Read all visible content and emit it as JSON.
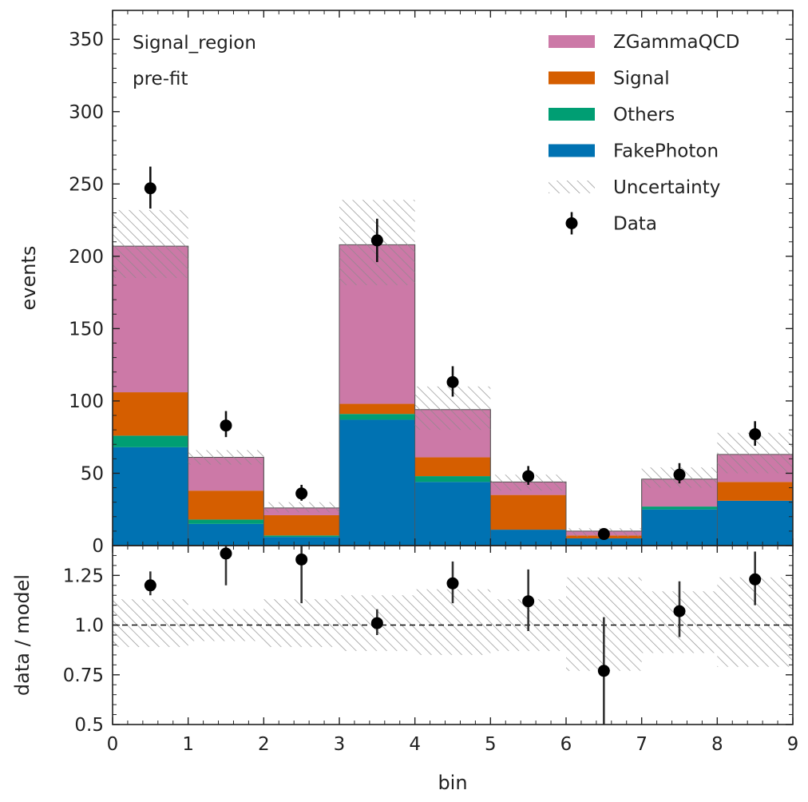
{
  "chart_data": [
    {
      "type": "bar",
      "stacked": true,
      "histogram": true,
      "annotations": [
        "Signal_region",
        "pre-fit"
      ],
      "xlabel": "bin",
      "ylabel": "events",
      "bin_edges": [
        0,
        1,
        2,
        3,
        4,
        5,
        6,
        7,
        8,
        9
      ],
      "xlim": [
        0,
        9
      ],
      "ylim": [
        0,
        370
      ],
      "xticks": [
        "0",
        "1",
        "2",
        "3",
        "4",
        "5",
        "6",
        "7",
        "8",
        "9"
      ],
      "yticks": [
        {
          "value": 0,
          "label": "0"
        },
        {
          "value": 50,
          "label": "50"
        },
        {
          "value": 100,
          "label": "100"
        },
        {
          "value": 150,
          "label": "150"
        },
        {
          "value": 200,
          "label": "200"
        },
        {
          "value": 250,
          "label": "250"
        },
        {
          "value": 300,
          "label": "300"
        },
        {
          "value": 350,
          "label": "350"
        }
      ],
      "legend_position": "top-right",
      "series": [
        {
          "name": "FakePhoton",
          "color": "#0072b2",
          "values": [
            68,
            15,
            6,
            87,
            44,
            11,
            5,
            25,
            31
          ]
        },
        {
          "name": "Others",
          "color": "#009e73",
          "values": [
            8,
            3,
            1,
            4,
            4,
            0,
            0,
            2,
            0
          ]
        },
        {
          "name": "Signal",
          "color": "#d55e00",
          "values": [
            30,
            20,
            14,
            7,
            13,
            24,
            2,
            0,
            13
          ]
        },
        {
          "name": "ZGammaQCD",
          "color": "#cc79a7",
          "values": [
            101,
            23,
            5,
            110,
            33,
            9,
            3,
            19,
            19
          ]
        }
      ],
      "uncertainty": {
        "name": "Uncertainty",
        "lower": [
          185,
          56,
          23,
          180,
          80,
          38,
          6,
          40,
          50
        ],
        "upper": [
          232,
          66,
          30,
          239,
          110,
          49,
          12,
          54,
          78
        ]
      },
      "data": {
        "name": "Data",
        "values": [
          247,
          83,
          36,
          211,
          113,
          48,
          8,
          49,
          77
        ],
        "err_low": [
          14,
          8,
          5,
          15,
          10,
          6,
          3,
          6,
          8
        ],
        "err_high": [
          15,
          10,
          6,
          15,
          11,
          7,
          3,
          8,
          9
        ]
      },
      "legend": [
        {
          "label": "ZGammaQCD",
          "kind": "patch",
          "color": "#cc79a7"
        },
        {
          "label": "Signal",
          "kind": "patch",
          "color": "#d55e00"
        },
        {
          "label": "Others",
          "kind": "patch",
          "color": "#009e73"
        },
        {
          "label": "FakePhoton",
          "kind": "patch",
          "color": "#0072b2"
        },
        {
          "label": "Uncertainty",
          "kind": "hatch",
          "color": "#888888"
        },
        {
          "label": "Data",
          "kind": "marker",
          "color": "#000000"
        }
      ]
    },
    {
      "type": "scatter",
      "xlabel": "bin",
      "ylabel": "data / model",
      "xlim": [
        0,
        9
      ],
      "ylim": [
        0.5,
        1.4
      ],
      "xticks": [
        "0",
        "1",
        "2",
        "3",
        "4",
        "5",
        "6",
        "7",
        "8",
        "9"
      ],
      "yticks": [
        {
          "value": 0.5,
          "label": "0.5"
        },
        {
          "value": 0.75,
          "label": "0.75"
        },
        {
          "value": 1.0,
          "label": "1.0"
        },
        {
          "value": 1.25,
          "label": "1.25"
        }
      ],
      "reference_line": 1.0,
      "band": {
        "lower": [
          0.89,
          0.92,
          0.89,
          0.87,
          0.85,
          0.87,
          0.77,
          0.86,
          0.79
        ],
        "upper": [
          1.13,
          1.08,
          1.13,
          1.15,
          1.18,
          1.13,
          1.24,
          1.17,
          1.24
        ]
      },
      "points": {
        "x": [
          0.5,
          1.5,
          2.5,
          3.5,
          4.5,
          5.5,
          6.5,
          7.5,
          8.5
        ],
        "values": [
          1.2,
          1.36,
          1.33,
          1.01,
          1.21,
          1.12,
          0.77,
          1.07,
          1.23
        ],
        "err_low": [
          0.05,
          0.16,
          0.22,
          0.06,
          0.1,
          0.15,
          0.3,
          0.13,
          0.13
        ],
        "err_high": [
          0.07,
          0.16,
          0.22,
          0.07,
          0.11,
          0.16,
          0.27,
          0.15,
          0.14
        ]
      }
    }
  ]
}
